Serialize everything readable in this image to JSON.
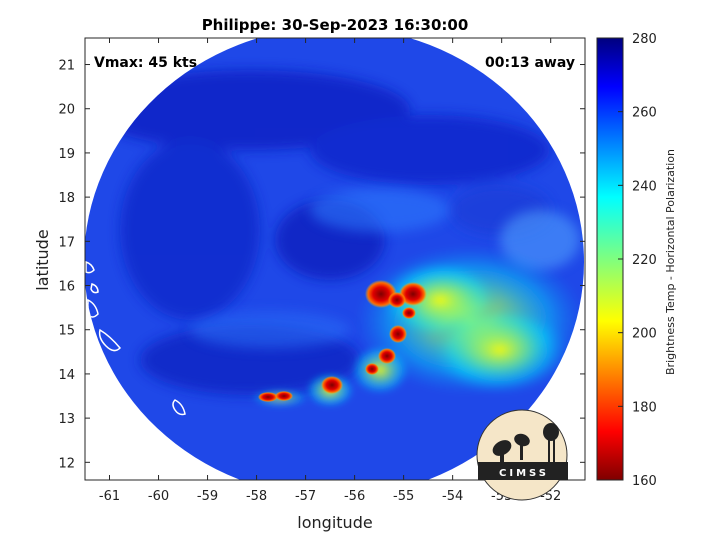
{
  "title": "Philippe: 30-Sep-2023 16:30:00",
  "vmax_label": "Vmax: 45 kts",
  "time_offset_label": "00:13 away",
  "x_axis": {
    "label": "longitude",
    "range": [
      -61.5,
      -51.3
    ],
    "ticks": [
      -61,
      -60,
      -59,
      -58,
      -57,
      -56,
      -55,
      -54,
      -53,
      -52
    ],
    "tick_labels": [
      "-61",
      "-60",
      "-59",
      "-58",
      "-57",
      "-56",
      "-55",
      "-54",
      "-53",
      "-52"
    ]
  },
  "y_axis": {
    "label": "latitude",
    "range": [
      11.6,
      21.6
    ],
    "ticks": [
      12,
      13,
      14,
      15,
      16,
      17,
      18,
      19,
      20,
      21
    ],
    "tick_labels": [
      "12",
      "13",
      "14",
      "15",
      "16",
      "17",
      "18",
      "19",
      "20",
      "21"
    ]
  },
  "colorbar": {
    "label": "Brightness Temp - Horizontal Polarization",
    "range": [
      160,
      280
    ],
    "ticks": [
      160,
      180,
      200,
      220,
      240,
      260,
      280
    ],
    "tick_labels": [
      "160",
      "180",
      "200",
      "220",
      "240",
      "260",
      "280"
    ],
    "colormap": "jet-reversed"
  },
  "logo_text": "CIMSS",
  "colors": {
    "cold": "#7f0000",
    "warm": "#00007f",
    "background_scene": "#1a3fe0",
    "coastline": "#ffffff"
  }
}
